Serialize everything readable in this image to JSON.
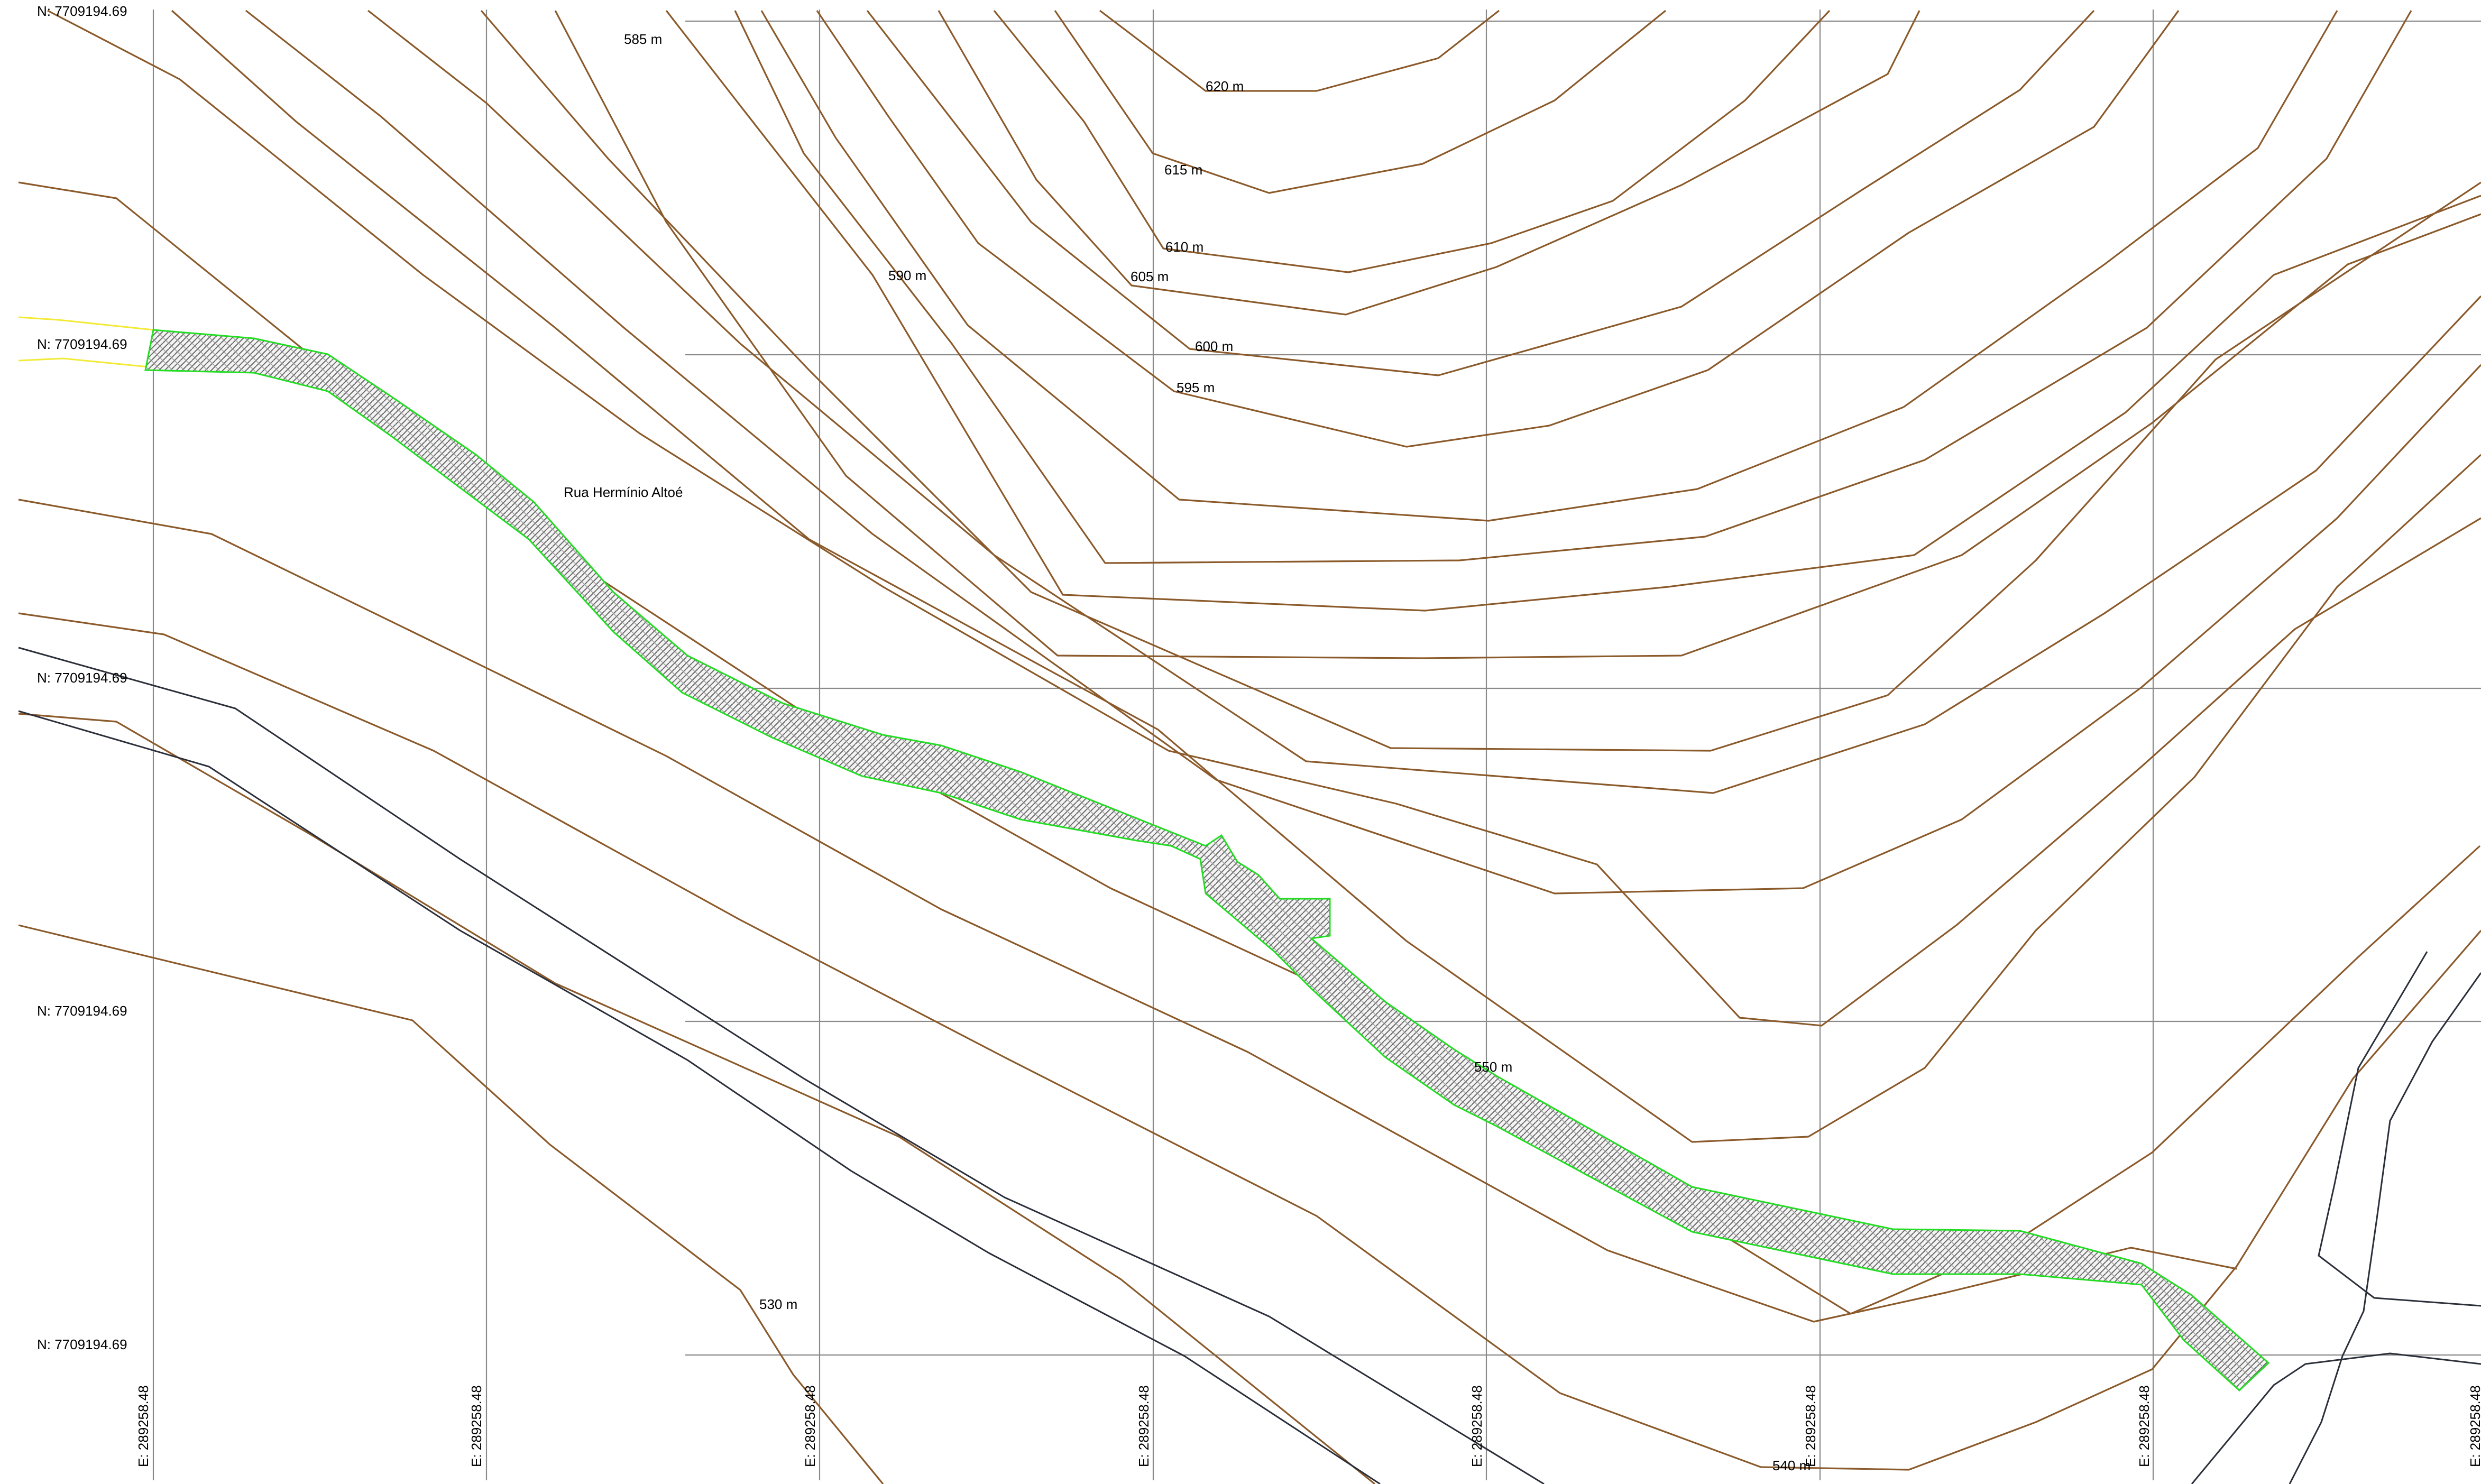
{
  "map": {
    "street_name": "Rua Hermínio Altoé",
    "contour_labels": [
      "620 m",
      "615 m",
      "610 m",
      "605 m",
      "600 m",
      "595 m",
      "590 m",
      "585 m",
      "550 m",
      "530 m",
      "540 m"
    ],
    "northing_label": "N: 7709194.69",
    "easting_label": "E: 289258.48",
    "colors": {
      "contour": "#8b5a2b",
      "grid": "#8a8a8a",
      "river": "#2b2f3a",
      "road_outline": "#22dd22",
      "road_edge": "#f2ea34"
    }
  }
}
